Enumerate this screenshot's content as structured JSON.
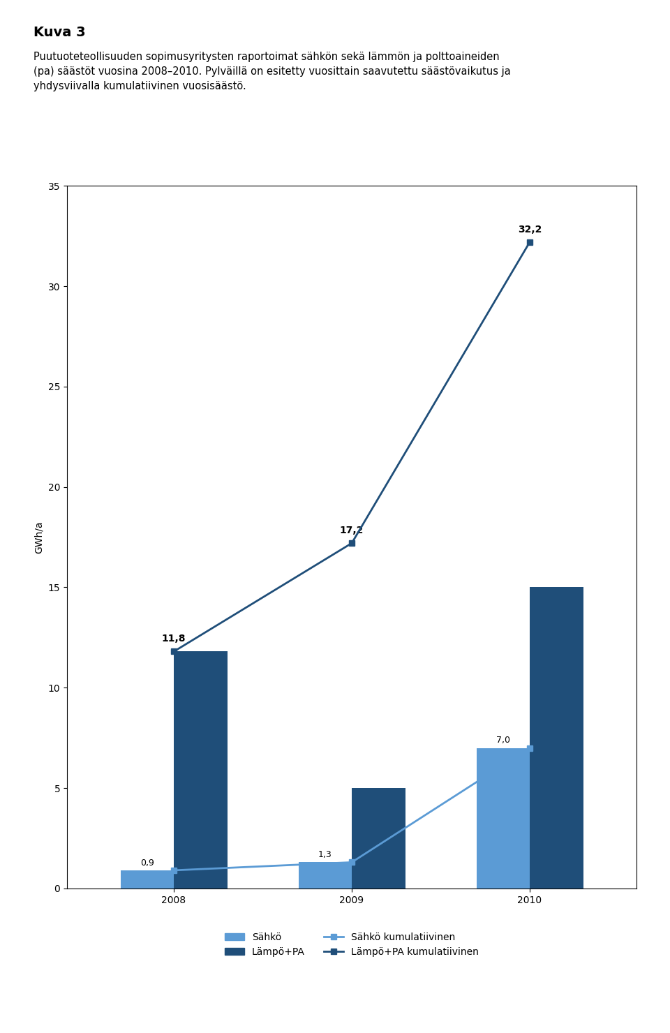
{
  "chart_data": {
    "type": "bar",
    "title": "Kuva 3",
    "subtitle": "Puutuoteteollisuuden sopimusyritysten raportoimat sähkön sekä lämmön ja polttoaineiden\n(pa) säästöt vuosina 2008–2010. Pylväillä on esitetty vuosittain saavutettu säästövaikutus ja\nyhdysviivalla kumulatiivinen vuosisäästö.",
    "y_label": "GWh/a",
    "categories": [
      "2008",
      "2009",
      "2010"
    ],
    "series": [
      {
        "name": "Sähkö",
        "type": "bar",
        "color": "#5b9bd5",
        "values": [
          0.9,
          1.3,
          7.0
        ],
        "data_labels": true,
        "value_labels": [
          "0,9",
          "1,3",
          "7,0"
        ]
      },
      {
        "name": "Lämpö+PA",
        "type": "bar",
        "color": "#1f4e79",
        "values": [
          11.8,
          5.0,
          15.0
        ]
      },
      {
        "name": "Sähkö kumulatiivinen",
        "type": "line",
        "color": "#5b9bd5",
        "marker": "square",
        "values": [
          0.9,
          1.3,
          7.0
        ]
      },
      {
        "name": "Lämpö+PA kumulatiivinen",
        "type": "line",
        "color": "#1f4e79",
        "marker": "square",
        "values": [
          11.8,
          17.2,
          32.2
        ],
        "data_labels": true,
        "value_labels": [
          "11,8",
          "17,2",
          "32,2"
        ]
      }
    ],
    "ylim": [
      0,
      35
    ],
    "yticks": [
      0,
      5,
      10,
      15,
      20,
      25,
      30,
      35
    ],
    "grid": false,
    "legend": "upper center"
  }
}
